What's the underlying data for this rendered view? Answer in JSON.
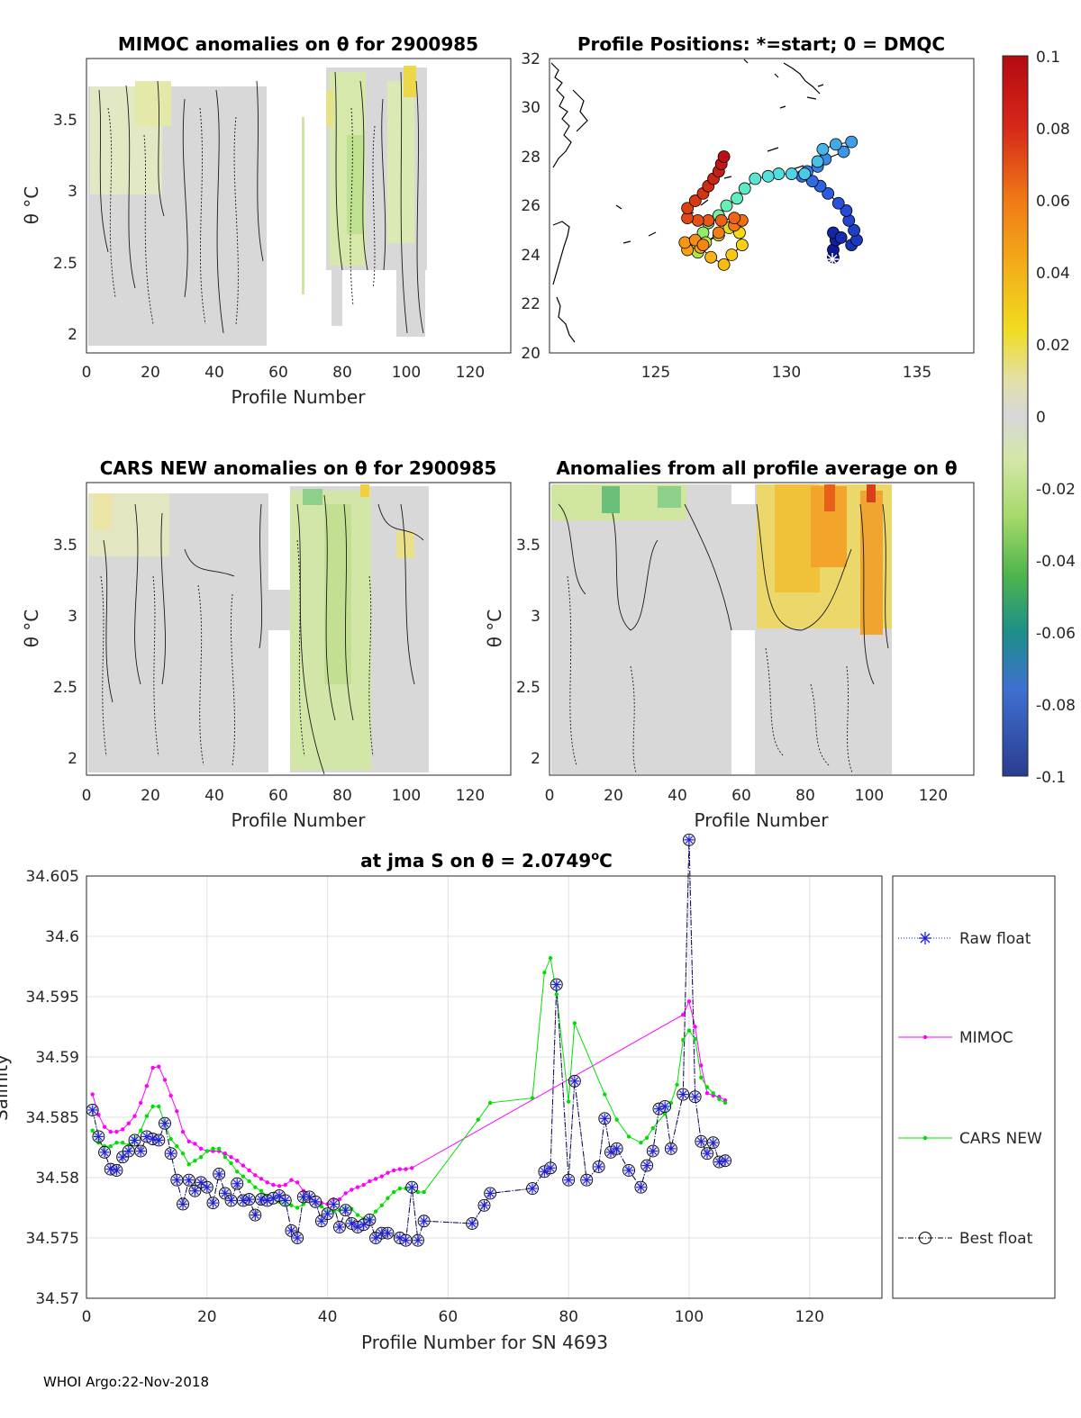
{
  "footer": "WHOI Argo:22-Nov-2018",
  "chart_data": [
    {
      "type": "heatmap",
      "id": "mimoc",
      "title": "MIMOC anomalies on θ  for 2900985",
      "xlabel": "Profile Number",
      "ylabel": "θ °C",
      "xlim": [
        0,
        133
      ],
      "ylim": [
        1.88,
        3.9
      ],
      "xticks": [
        "0",
        "20",
        "40",
        "60",
        "80",
        "100",
        "120"
      ],
      "yticks": [
        "2",
        "2.5",
        "3",
        "3.5"
      ]
    },
    {
      "type": "scatter",
      "id": "positions",
      "title": "Profile Positions: *=start; 0 = DMQC",
      "xlim": [
        120.9,
        137.2
      ],
      "ylim": [
        20,
        32
      ],
      "xticks": [
        "125",
        "130",
        "135"
      ],
      "yticks": [
        "20",
        "22",
        "24",
        "26",
        "28",
        "30",
        "32"
      ],
      "track": [
        [
          131.8,
          23.9
        ],
        [
          131.8,
          24.2
        ],
        [
          131.9,
          24.6
        ],
        [
          131.8,
          24.9
        ],
        [
          132.1,
          24.7
        ],
        [
          132.5,
          24.4
        ],
        [
          132.7,
          24.6
        ],
        [
          132.6,
          25.0
        ],
        [
          132.4,
          25.4
        ],
        [
          132.3,
          25.8
        ],
        [
          132.0,
          26.1
        ],
        [
          131.6,
          26.5
        ],
        [
          131.3,
          26.8
        ],
        [
          131.0,
          27.0
        ],
        [
          130.6,
          27.2
        ],
        [
          130.8,
          27.4
        ],
        [
          131.2,
          27.6
        ],
        [
          131.5,
          27.9
        ],
        [
          132.2,
          28.2
        ],
        [
          132.5,
          28.6
        ],
        [
          131.9,
          28.5
        ],
        [
          131.4,
          28.3
        ],
        [
          131.2,
          27.8
        ],
        [
          130.7,
          27.3
        ],
        [
          130.2,
          27.3
        ],
        [
          129.7,
          27.3
        ],
        [
          129.3,
          27.2
        ],
        [
          128.8,
          27.1
        ],
        [
          128.4,
          26.7
        ],
        [
          128.1,
          26.3
        ],
        [
          127.7,
          26.0
        ],
        [
          127.4,
          25.6
        ],
        [
          127.0,
          25.3
        ],
        [
          126.8,
          24.9
        ],
        [
          126.4,
          24.5
        ],
        [
          126.6,
          24.1
        ],
        [
          126.9,
          24.5
        ],
        [
          127.4,
          24.8
        ],
        [
          127.8,
          25.1
        ],
        [
          128.1,
          25.4
        ],
        [
          128.2,
          24.9
        ],
        [
          128.3,
          24.4
        ],
        [
          127.9,
          24.0
        ],
        [
          127.6,
          23.6
        ],
        [
          127.1,
          23.9
        ],
        [
          126.7,
          24.3
        ],
        [
          126.2,
          24.2
        ],
        [
          126.1,
          24.5
        ],
        [
          126.5,
          24.6
        ],
        [
          126.8,
          24.4
        ],
        [
          127.4,
          24.9
        ],
        [
          128.0,
          25.2
        ],
        [
          128.3,
          25.4
        ],
        [
          128.0,
          25.5
        ],
        [
          127.5,
          25.4
        ],
        [
          127.0,
          25.4
        ],
        [
          126.6,
          25.4
        ],
        [
          126.2,
          25.5
        ],
        [
          126.2,
          25.9
        ],
        [
          126.5,
          26.2
        ],
        [
          126.8,
          26.5
        ],
        [
          127.0,
          26.8
        ],
        [
          127.2,
          27.1
        ],
        [
          127.4,
          27.4
        ],
        [
          127.5,
          27.7
        ],
        [
          127.6,
          28.0
        ]
      ]
    },
    {
      "type": "heatmap",
      "id": "cars",
      "title": "CARS NEW anomalies on θ for 2900985",
      "xlabel": "Profile Number",
      "ylabel": "θ °C",
      "xlim": [
        0,
        133
      ],
      "ylim": [
        1.88,
        3.9
      ],
      "xticks": [
        "0",
        "20",
        "40",
        "60",
        "80",
        "100",
        "120"
      ],
      "yticks": [
        "2",
        "2.5",
        "3",
        "3.5"
      ]
    },
    {
      "type": "heatmap",
      "id": "avg",
      "title": "Anomalies from all profile average on θ",
      "xlabel": "Profile Number",
      "ylabel": "θ °C",
      "xlim": [
        0,
        133
      ],
      "ylim": [
        1.88,
        3.9
      ],
      "xticks": [
        "0",
        "20",
        "40",
        "60",
        "80",
        "100",
        "120"
      ],
      "yticks": [
        "2",
        "2.5",
        "3",
        "3.5"
      ]
    },
    {
      "type": "colorbar",
      "id": "colorbar",
      "range": [
        -0.1,
        0.1
      ],
      "ticks": [
        "0.1",
        "0.08",
        "0.06",
        "0.04",
        "0.02",
        "0",
        "-0.02",
        "-0.04",
        "-0.06",
        "-0.08",
        "-0.1"
      ],
      "tick_values": [
        0.1,
        0.08,
        0.06,
        0.04,
        0.02,
        0,
        -0.02,
        -0.04,
        -0.06,
        -0.08,
        -0.1
      ]
    },
    {
      "type": "line",
      "id": "salinity",
      "title": "at jma S on θ = 2.0749°C",
      "title_main": "at jma S on θ = 2.0749",
      "title_sup": "o",
      "title_end": "C",
      "xlabel": "Profile Number for SN 4693",
      "ylabel": "Salinity",
      "xlim": [
        0,
        132
      ],
      "ylim": [
        34.57,
        34.605
      ],
      "xticks": [
        "0",
        "20",
        "40",
        "60",
        "80",
        "100",
        "120"
      ],
      "xtick_values": [
        0,
        20,
        40,
        60,
        80,
        100,
        120
      ],
      "yticks": [
        "34.57",
        "34.575",
        "34.58",
        "34.585",
        "34.59",
        "34.595",
        "34.6",
        "34.605"
      ],
      "ytick_values": [
        34.57,
        34.575,
        34.58,
        34.585,
        34.59,
        34.595,
        34.6,
        34.605
      ],
      "legend": [
        "Raw float",
        "MIMOC",
        "CARS NEW",
        "Best float"
      ],
      "series": [
        {
          "name": "Raw float",
          "x": [
            1,
            2,
            3,
            4,
            5,
            6,
            7,
            8,
            9,
            10,
            11,
            12,
            13,
            14,
            15,
            16,
            17,
            18,
            19,
            20,
            21,
            22,
            23,
            24,
            25,
            26,
            27,
            28,
            29,
            30,
            31,
            32,
            33,
            34,
            35,
            36,
            37,
            38,
            39,
            40,
            41,
            42,
            43,
            44,
            45,
            46,
            47,
            48,
            49,
            50,
            52,
            53,
            54,
            55,
            56,
            64,
            66,
            67,
            74,
            76,
            77,
            78,
            80,
            81,
            83,
            85,
            86,
            87,
            88,
            90,
            92,
            93,
            94,
            95,
            96,
            97,
            99,
            100,
            101,
            102,
            103,
            104,
            105,
            106
          ],
          "y": [
            34.5856,
            34.5834,
            34.5821,
            34.5807,
            34.5806,
            34.5817,
            34.5822,
            34.5831,
            34.5822,
            34.5834,
            34.5832,
            34.5831,
            34.5845,
            34.582,
            34.5798,
            34.5778,
            34.5798,
            34.5789,
            34.5796,
            34.5792,
            34.5779,
            34.5803,
            34.5787,
            34.5781,
            34.5795,
            34.5781,
            34.5782,
            34.5769,
            34.5782,
            34.5781,
            34.5783,
            34.5785,
            34.5781,
            34.5756,
            34.575,
            34.5784,
            34.5784,
            34.578,
            34.5764,
            34.577,
            34.5778,
            34.5759,
            34.5773,
            34.5762,
            34.5759,
            34.5761,
            34.5765,
            34.575,
            34.5754,
            34.5754,
            34.575,
            34.5748,
            34.5792,
            34.5748,
            34.5764,
            34.5762,
            34.5777,
            34.5787,
            34.5791,
            34.5805,
            34.5808,
            34.596,
            34.5798,
            34.588,
            34.5798,
            34.5809,
            34.5849,
            34.5821,
            34.5824,
            34.5806,
            34.5792,
            34.581,
            34.5822,
            34.5857,
            34.5859,
            34.5824,
            34.5869,
            34.608,
            34.5867,
            34.583,
            34.582,
            34.5829,
            34.5813,
            34.5814
          ]
        },
        {
          "name": "MIMOC",
          "x": [
            1,
            2,
            3,
            4,
            5,
            6,
            7,
            8,
            9,
            10,
            11,
            12,
            13,
            14,
            15,
            16,
            17,
            18,
            19,
            20,
            21,
            22,
            23,
            24,
            25,
            26,
            27,
            28,
            29,
            30,
            31,
            32,
            33,
            34,
            35,
            36,
            37,
            38,
            39,
            40,
            41,
            42,
            43,
            44,
            45,
            46,
            47,
            48,
            49,
            50,
            51,
            52,
            53,
            54,
            99,
            100,
            101,
            102,
            103,
            104,
            105,
            106
          ],
          "y": [
            34.5869,
            34.5852,
            34.5842,
            34.5838,
            34.5838,
            34.584,
            34.5845,
            34.5851,
            34.5862,
            34.5876,
            34.5891,
            34.5892,
            34.5881,
            34.5868,
            34.5855,
            34.5838,
            34.583,
            34.5828,
            34.5824,
            34.5822,
            34.5822,
            34.5822,
            34.582,
            34.5817,
            34.5814,
            34.581,
            34.5806,
            34.5802,
            34.5799,
            34.5796,
            34.5794,
            34.5793,
            34.5794,
            34.5798,
            34.5796,
            34.5789,
            34.5782,
            34.5779,
            34.5779,
            34.5778,
            34.5782,
            34.5782,
            34.5787,
            34.579,
            34.5792,
            34.5794,
            34.5797,
            34.5799,
            34.5801,
            34.5804,
            34.5806,
            34.5807,
            34.5807,
            34.5808,
            34.5935,
            34.5946,
            34.5925,
            34.5893,
            34.587,
            34.5868,
            34.5867,
            34.5864
          ]
        },
        {
          "name": "CARS NEW",
          "x": [
            1,
            2,
            3,
            4,
            5,
            6,
            7,
            8,
            9,
            10,
            11,
            12,
            13,
            14,
            15,
            16,
            17,
            18,
            19,
            20,
            21,
            22,
            23,
            24,
            25,
            26,
            27,
            28,
            29,
            30,
            31,
            32,
            33,
            34,
            35,
            36,
            37,
            38,
            39,
            40,
            41,
            42,
            43,
            44,
            45,
            46,
            47,
            48,
            49,
            50,
            51,
            52,
            53,
            54,
            55,
            56,
            65,
            67,
            74,
            76,
            77,
            78,
            80,
            81,
            86,
            88,
            90,
            92,
            93,
            94,
            96,
            97,
            98,
            99,
            100,
            101,
            102,
            103,
            104,
            105,
            106
          ],
          "y": [
            34.5839,
            34.5829,
            34.5826,
            34.5826,
            34.5829,
            34.5829,
            34.5827,
            34.5832,
            34.5839,
            34.5851,
            34.5859,
            34.5859,
            34.5845,
            34.5832,
            34.5826,
            34.582,
            34.5811,
            34.5814,
            34.5817,
            34.5822,
            34.5824,
            34.5824,
            34.5817,
            34.5812,
            34.5805,
            34.5801,
            34.5797,
            34.5792,
            34.5789,
            34.5785,
            34.5782,
            34.578,
            34.5778,
            34.5777,
            34.5775,
            34.5778,
            34.5782,
            34.578,
            34.5776,
            34.5772,
            34.5772,
            34.5773,
            34.5775,
            34.5774,
            34.5769,
            34.5766,
            34.5766,
            34.5772,
            34.5777,
            34.5783,
            34.5788,
            34.5791,
            34.5791,
            34.5791,
            34.5788,
            34.5788,
            34.5848,
            34.5862,
            34.5866,
            34.597,
            34.5982,
            34.5952,
            34.5863,
            34.5928,
            34.5869,
            34.5848,
            34.5834,
            34.5829,
            34.5833,
            34.5841,
            34.5853,
            34.5862,
            34.5877,
            34.5914,
            34.5922,
            34.5915,
            34.5883,
            34.5875,
            34.587,
            34.5865,
            34.5862
          ]
        },
        {
          "name": "Best float",
          "x": [
            1,
            2,
            3,
            4,
            5,
            6,
            7,
            8,
            9,
            10,
            11,
            12,
            13,
            14,
            15,
            16,
            17,
            18,
            19,
            20,
            21,
            22,
            23,
            24,
            25,
            26,
            27,
            28,
            29,
            30,
            31,
            32,
            33,
            34,
            35,
            36,
            37,
            38,
            39,
            40,
            41,
            42,
            43,
            44,
            45,
            46,
            47,
            48,
            49,
            50,
            52,
            53,
            54,
            55,
            56,
            64,
            66,
            67,
            74,
            76,
            77,
            78,
            80,
            81,
            83,
            85,
            86,
            87,
            88,
            90,
            92,
            93,
            94,
            95,
            96,
            97,
            99,
            100,
            101,
            102,
            103,
            104,
            105,
            106
          ],
          "y": [
            34.5856,
            34.5834,
            34.5821,
            34.5807,
            34.5806,
            34.5817,
            34.5822,
            34.5831,
            34.5822,
            34.5834,
            34.5832,
            34.5831,
            34.5845,
            34.582,
            34.5798,
            34.5778,
            34.5798,
            34.5789,
            34.5796,
            34.5792,
            34.5779,
            34.5803,
            34.5787,
            34.5781,
            34.5795,
            34.5781,
            34.5782,
            34.5769,
            34.5782,
            34.5781,
            34.5783,
            34.5785,
            34.5781,
            34.5756,
            34.575,
            34.5784,
            34.5784,
            34.578,
            34.5764,
            34.577,
            34.5778,
            34.5759,
            34.5773,
            34.5762,
            34.5759,
            34.5761,
            34.5765,
            34.575,
            34.5754,
            34.5754,
            34.575,
            34.5748,
            34.5792,
            34.5748,
            34.5764,
            34.5762,
            34.5777,
            34.5787,
            34.5791,
            34.5805,
            34.5808,
            34.596,
            34.5798,
            34.588,
            34.5798,
            34.5809,
            34.5849,
            34.5821,
            34.5824,
            34.5806,
            34.5792,
            34.581,
            34.5822,
            34.5857,
            34.5859,
            34.5824,
            34.5869,
            34.608,
            34.5867,
            34.583,
            34.582,
            34.5829,
            34.5813,
            34.5814
          ]
        }
      ]
    }
  ]
}
